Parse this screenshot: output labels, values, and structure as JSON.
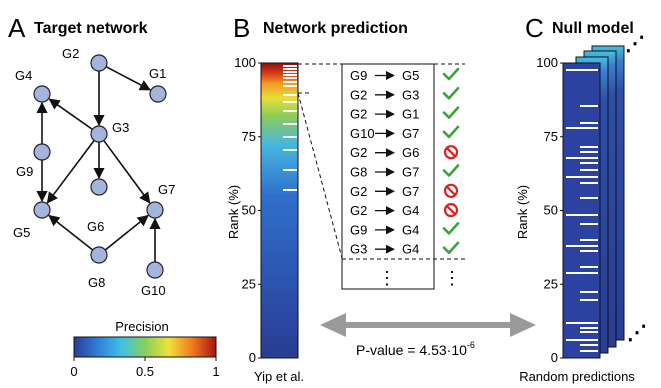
{
  "panels": {
    "a": {
      "letter": "A",
      "title": "Target network"
    },
    "b": {
      "letter": "B",
      "title": "Network prediction"
    },
    "c": {
      "letter": "C",
      "title": "Null model"
    }
  },
  "network": {
    "nodes": [
      "G1",
      "G2",
      "G3",
      "G4",
      "G5",
      "G6",
      "G7",
      "G8",
      "G9",
      "G10"
    ],
    "edges": [
      {
        "from": "G2",
        "to": "G1"
      },
      {
        "from": "G2",
        "to": "G3"
      },
      {
        "from": "G3",
        "to": "G4"
      },
      {
        "from": "G9",
        "to": "G4"
      },
      {
        "from": "G9",
        "to": "G5"
      },
      {
        "from": "G3",
        "to": "G5"
      },
      {
        "from": "G3",
        "to": "G6"
      },
      {
        "from": "G3",
        "to": "G7"
      },
      {
        "from": "G8",
        "to": "G5"
      },
      {
        "from": "G8",
        "to": "G7"
      },
      {
        "from": "G10",
        "to": "G7"
      }
    ]
  },
  "colorbar": {
    "title": "Precision",
    "ticks": [
      "0",
      "0.5",
      "1"
    ],
    "colors": [
      "#2a3c94",
      "#2f7fd8",
      "#3fc1e6",
      "#86d05c",
      "#f0e03a",
      "#f07a1e",
      "#a81412"
    ]
  },
  "prediction": {
    "ylabel": "Rank (%)",
    "yticks": [
      "0",
      "25",
      "50",
      "75",
      "100"
    ],
    "xlabel": "Yip et al.",
    "top_predictions": [
      {
        "from": "G9",
        "to": "G5",
        "correct": true
      },
      {
        "from": "G2",
        "to": "G3",
        "correct": true
      },
      {
        "from": "G2",
        "to": "G1",
        "correct": true
      },
      {
        "from": "G10",
        "to": "G7",
        "correct": true
      },
      {
        "from": "G2",
        "to": "G6",
        "correct": false
      },
      {
        "from": "G8",
        "to": "G7",
        "correct": true
      },
      {
        "from": "G2",
        "to": "G7",
        "correct": false
      },
      {
        "from": "G2",
        "to": "G4",
        "correct": false
      },
      {
        "from": "G9",
        "to": "G4",
        "correct": true
      },
      {
        "from": "G3",
        "to": "G4",
        "correct": true
      }
    ],
    "ellipsis": "⋮"
  },
  "null_model": {
    "ylabel": "Rank (%)",
    "yticks": [
      "0",
      "25",
      "50",
      "75",
      "100"
    ],
    "xlabel": "Random predictions",
    "ellipsis": "⋰"
  },
  "comparison": {
    "pvalue_label": "P-value = 4.53·10",
    "pvalue_exponent": "-6"
  },
  "colors": {
    "node_fill": "#a3b5dc",
    "node_stroke": "#222222",
    "arrow_gray": "#9a9a9a",
    "check_green": "#3aa53a",
    "cross_red": "#d9231f",
    "bar_blue": "#2e4aa6"
  }
}
